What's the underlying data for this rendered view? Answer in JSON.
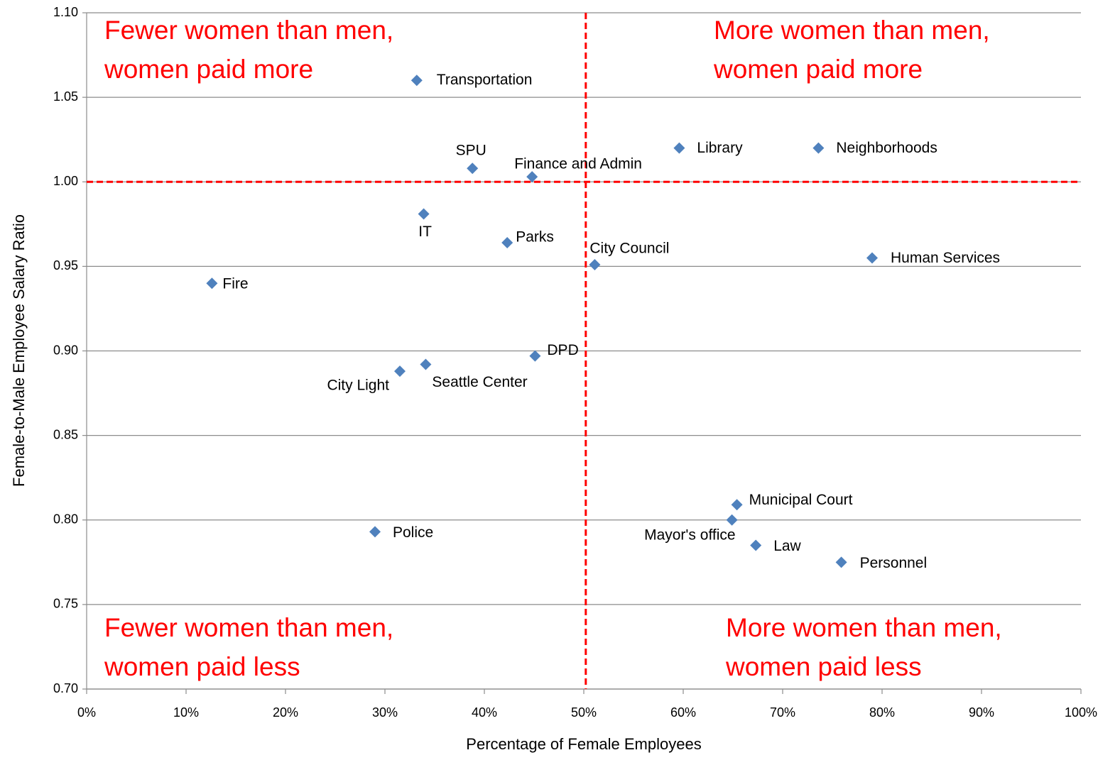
{
  "chart_data": {
    "type": "scatter",
    "x_label": "Percentage of Female Employees",
    "y_label": "Female-to-Male Employee Salary Ratio",
    "xlim": [
      0,
      100
    ],
    "ylim": [
      0.7,
      1.1
    ],
    "xticks": [
      {
        "value": 0,
        "label": "0%"
      },
      {
        "value": 10,
        "label": "10%"
      },
      {
        "value": 20,
        "label": "20%"
      },
      {
        "value": 30,
        "label": "30%"
      },
      {
        "value": 40,
        "label": "40%"
      },
      {
        "value": 50,
        "label": "50%"
      },
      {
        "value": 60,
        "label": "60%"
      },
      {
        "value": 70,
        "label": "70%"
      },
      {
        "value": 80,
        "label": "80%"
      },
      {
        "value": 90,
        "label": "90%"
      },
      {
        "value": 100,
        "label": "100%"
      }
    ],
    "yticks": [
      {
        "value": 0.7,
        "label": "0.70"
      },
      0.75,
      {
        "value": 0.8,
        "label": "0.80"
      },
      0.85,
      {
        "value": 0.9,
        "label": "0.90"
      },
      0.95,
      {
        "value": 1.0,
        "label": "1.00"
      },
      1.05,
      {
        "value": 1.1,
        "label": "1.10"
      }
    ],
    "grid": true,
    "color": "#4f81bd",
    "ref_color": "#ff0000",
    "vline": 50.2,
    "hline": 1.0,
    "labels": [
      "Transportation",
      "SPU",
      "Finance and Admin",
      "Library",
      "Neighborhoods",
      "IT",
      "Parks",
      "City Council",
      "Human Services",
      "Fire",
      "DPD",
      "City Light",
      "Seattle Center",
      "Municipal Court",
      "Mayor's office",
      "Police",
      "Law",
      "Personnel"
    ],
    "x": [
      33.2,
      38.8,
      44.8,
      59.6,
      73.6,
      33.9,
      42.3,
      51.1,
      79.0,
      12.6,
      45.1,
      31.5,
      34.1,
      65.4,
      64.9,
      29.0,
      67.3,
      75.9
    ],
    "values": [
      1.06,
      1.008,
      1.003,
      1.02,
      1.02,
      0.981,
      0.964,
      0.951,
      0.955,
      0.94,
      0.897,
      0.888,
      0.892,
      0.809,
      0.8,
      0.793,
      0.785,
      0.775
    ],
    "annotations": [
      {
        "lines": [
          "Fewer women than men,",
          "women paid more"
        ]
      },
      {
        "lines": [
          "More women than men,",
          "women paid more"
        ]
      },
      {
        "lines": [
          "Fewer women than men,",
          "women paid less"
        ]
      },
      {
        "lines": [
          "More women than men,",
          "women paid less"
        ]
      }
    ]
  }
}
